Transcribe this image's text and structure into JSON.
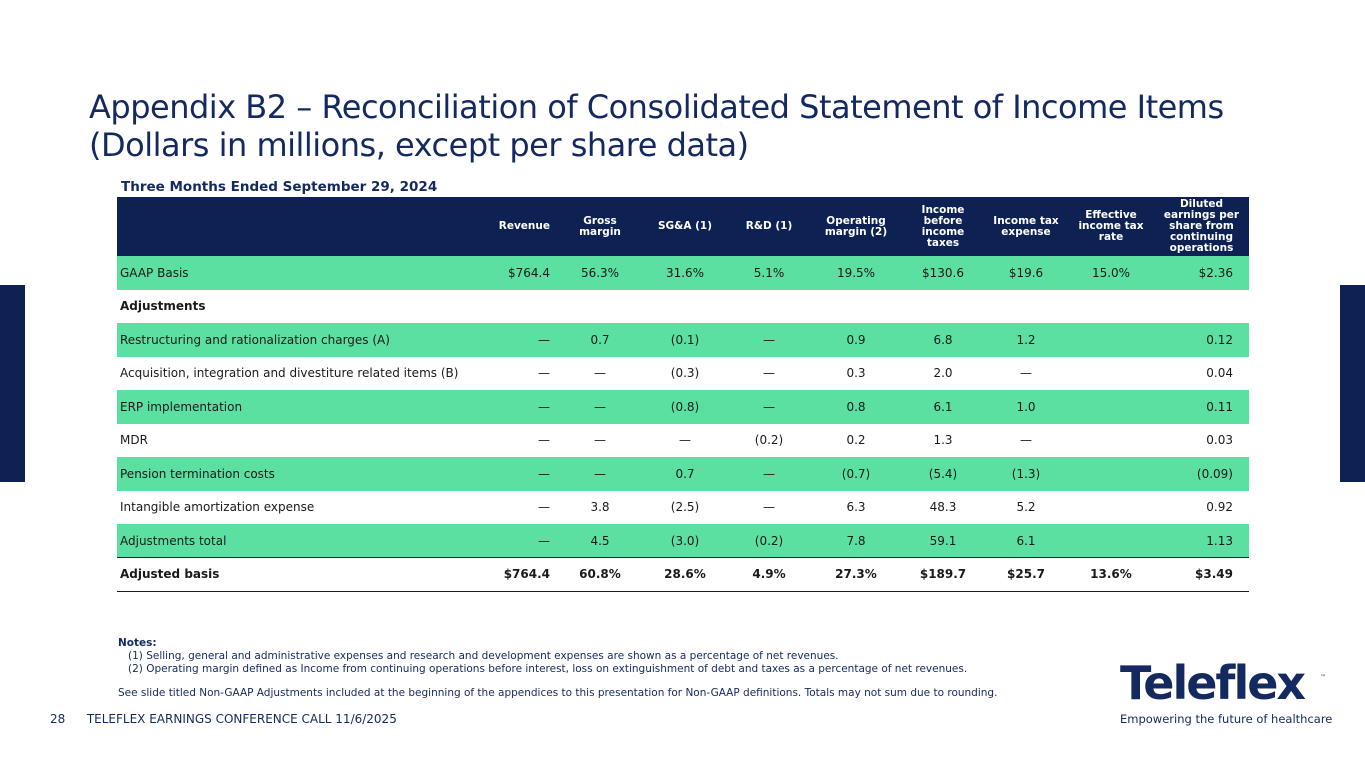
{
  "title": {
    "line1": "Appendix B2 – Reconciliation of Consolidated Statement of Income Items",
    "line2": "(Dollars in millions, except per share data)"
  },
  "period": "Three Months Ended September 29, 2024",
  "columns": [
    "",
    "Revenue",
    "Gross margin",
    "SG&A (1)",
    "R&D (1)",
    "Operating margin (2)",
    "Income before income taxes",
    "Income tax expense",
    "Effective income tax rate",
    "Diluted earnings per share from continuing operations"
  ],
  "rows": [
    {
      "label": "GAAP Basis",
      "values": [
        "$764.4",
        "56.3%",
        "31.6%",
        "5.1%",
        "19.5%",
        "$130.6",
        "$19.6",
        "15.0%",
        "$2.36"
      ]
    },
    {
      "label": "Adjustments",
      "values": [
        "",
        "",
        "",
        "",
        "",
        "",
        "",
        "",
        ""
      ]
    },
    {
      "label": "Restructuring and rationalization charges (A)",
      "values": [
        "—",
        "0.7",
        "(0.1)",
        "—",
        "0.9",
        "6.8",
        "1.2",
        "",
        "0.12"
      ]
    },
    {
      "label": "Acquisition, integration and divestiture related items (B)",
      "values": [
        "—",
        "—",
        "(0.3)",
        "—",
        "0.3",
        "2.0",
        "—",
        "",
        "0.04"
      ]
    },
    {
      "label": "ERP implementation",
      "values": [
        "—",
        "—",
        "(0.8)",
        "—",
        "0.8",
        "6.1",
        "1.0",
        "",
        "0.11"
      ]
    },
    {
      "label": "MDR",
      "values": [
        "—",
        "—",
        "—",
        "(0.2)",
        "0.2",
        "1.3",
        "—",
        "",
        "0.03"
      ]
    },
    {
      "label": "Pension termination costs",
      "values": [
        "—",
        "—",
        "0.7",
        "—",
        "(0.7)",
        "(5.4)",
        "(1.3)",
        "",
        "(0.09)"
      ]
    },
    {
      "label": "Intangible amortization expense",
      "values": [
        "—",
        "3.8",
        "(2.5)",
        "—",
        "6.3",
        "48.3",
        "5.2",
        "",
        "0.92"
      ]
    },
    {
      "label": "Adjustments total",
      "values": [
        "—",
        "4.5",
        "(3.0)",
        "(0.2)",
        "7.8",
        "59.1",
        "6.1",
        "",
        "1.13"
      ]
    },
    {
      "label": "Adjusted basis",
      "values": [
        "$764.4",
        "60.8%",
        "28.6%",
        "4.9%",
        "27.3%",
        "$189.7",
        "$25.7",
        "13.6%",
        "$3.49"
      ]
    }
  ],
  "notes": {
    "heading": "Notes:",
    "items": [
      "(1) Selling, general and administrative expenses and research and development expenses are shown as a percentage of net revenues.",
      "(2) Operating margin defined as Income from continuing operations before interest, loss on extinguishment of debt and taxes as a percentage of net revenues."
    ],
    "disclaimer": "See slide titled Non-GAAP Adjustments included at the beginning of the appendices to this presentation for Non-GAAP definitions. Totals may not sum due to rounding."
  },
  "footer": {
    "page_number": "28",
    "text": "TELEFLEX EARNINGS CONFERENCE CALL 11/6/2025"
  },
  "logo": {
    "wordmark": "Teleflex",
    "trademark": "™",
    "tagline": "Empowering the future of healthcare"
  },
  "colors": {
    "navy": "#0d2253",
    "title_blue": "#13295f",
    "row_green": "#5ce0a2"
  }
}
